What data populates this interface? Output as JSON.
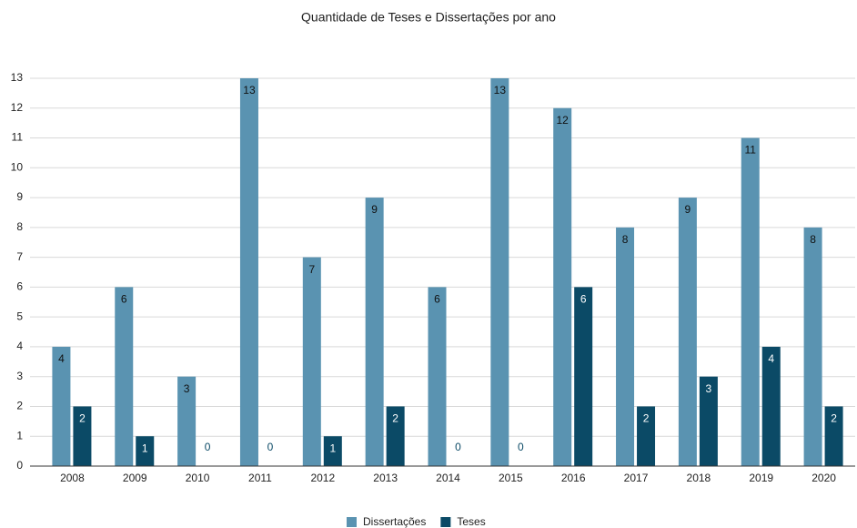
{
  "chart_data": {
    "type": "bar",
    "title": "Quantidade de Teses e Dissertações por ano",
    "categories": [
      "2008",
      "2009",
      "2010",
      "2011",
      "2012",
      "2013",
      "2014",
      "2015",
      "2016",
      "2017",
      "2018",
      "2019",
      "2020"
    ],
    "series": [
      {
        "name": "Dissertações",
        "color": "#5a93b1",
        "values": [
          4,
          6,
          3,
          13,
          7,
          9,
          6,
          13,
          12,
          8,
          9,
          11,
          8
        ]
      },
      {
        "name": "Teses",
        "color": "#0b4a66",
        "values": [
          2,
          1,
          0,
          0,
          1,
          2,
          0,
          0,
          6,
          2,
          3,
          4,
          2
        ]
      }
    ],
    "ylim": [
      0,
      13
    ],
    "yticks": [
      0,
      1,
      2,
      3,
      4,
      5,
      6,
      7,
      8,
      9,
      10,
      11,
      12,
      13
    ],
    "grid": true,
    "legend": "bottom"
  }
}
